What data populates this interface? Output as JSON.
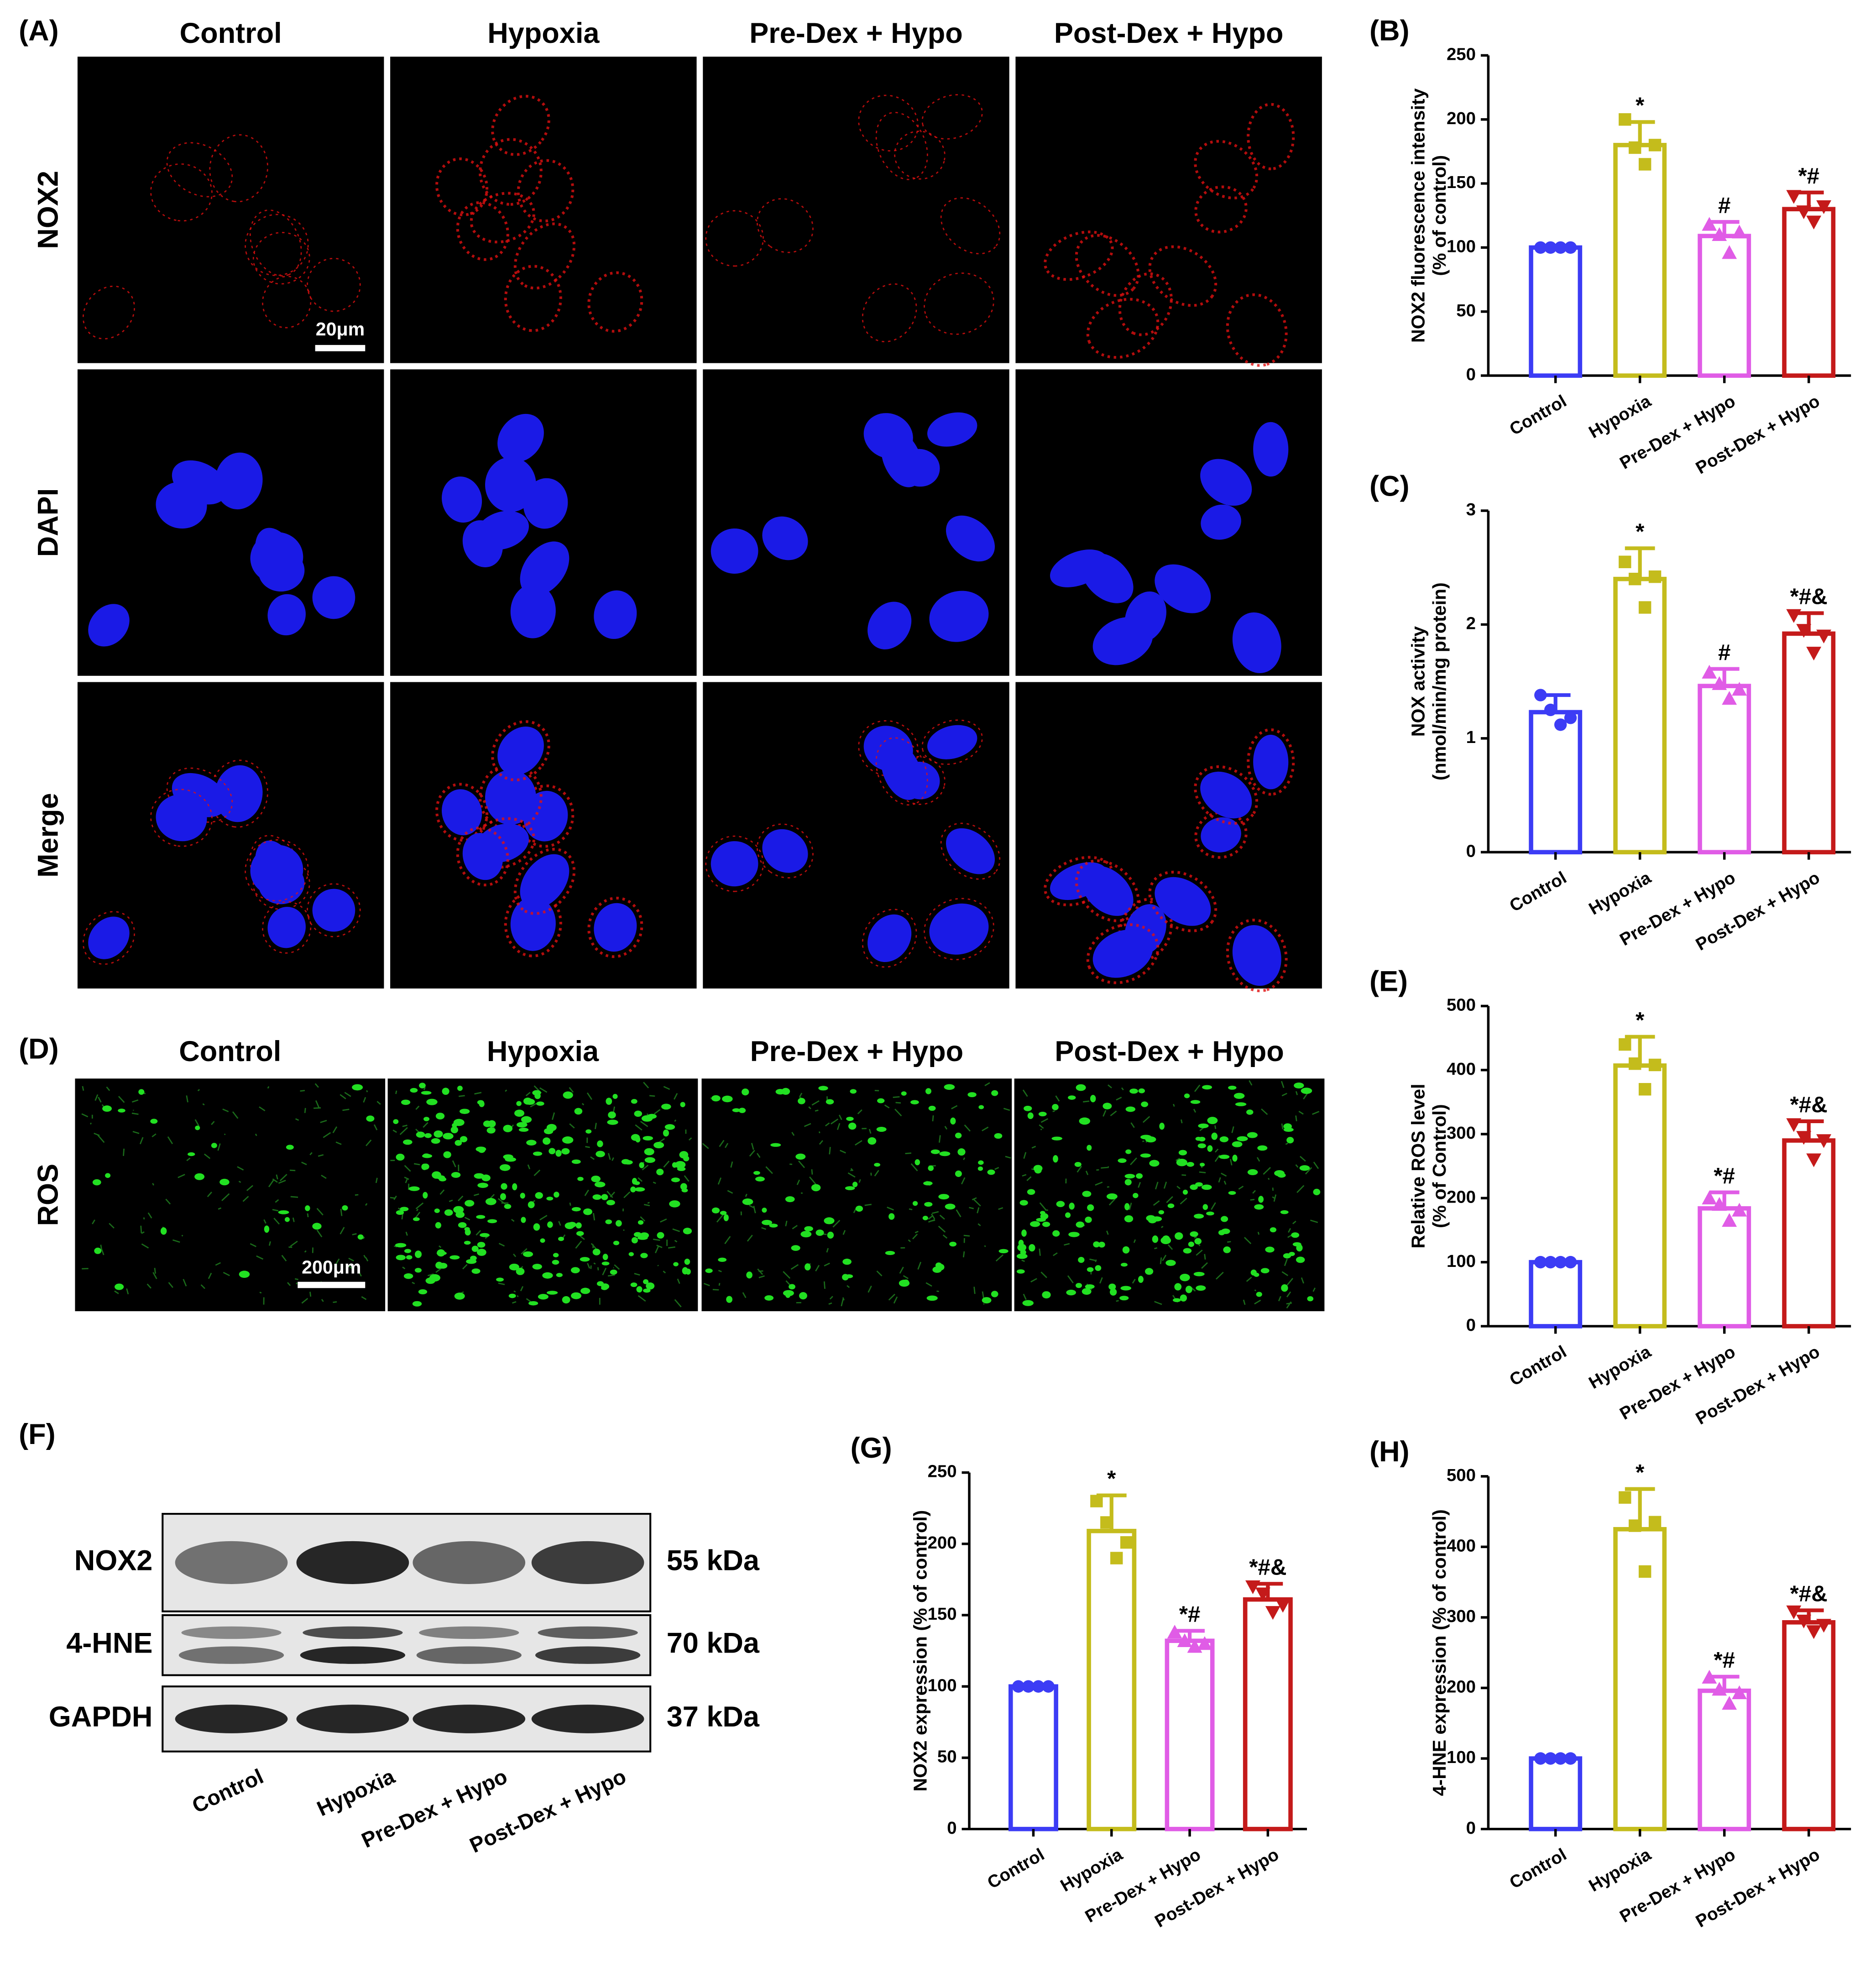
{
  "figure": {
    "panel_a": "(A)",
    "panel_d": "(D)",
    "panel_f": "(F)",
    "a_columns": [
      "Control",
      "Hypoxia",
      "Pre-Dex + Hypo",
      "Post-Dex + Hypo"
    ],
    "a_rows": [
      "NOX2",
      "DAPI",
      "Merge"
    ],
    "a_scale": "20μm",
    "d_columns": [
      "Control",
      "Hypoxia",
      "Pre-Dex + Hypo",
      "Post-Dex + Hypo"
    ],
    "d_row": "ROS",
    "d_scale": "200μm",
    "f_rows": [
      "NOX2",
      "4-HNE",
      "GAPDH"
    ],
    "f_sizes": [
      "55 kDa",
      "70 kDa",
      "37 kDa"
    ],
    "f_lanes": [
      "Control",
      "Hypoxia",
      "Pre-Dex + Hypo",
      "Post-Dex + Hypo"
    ]
  },
  "chart_data": [
    {
      "type": "bar",
      "panel": "(B)",
      "y_label": [
        "NOX2 fluorescence intensity",
        "(% of control)"
      ],
      "categories": [
        "Control",
        "Hypoxia",
        "Pre-Dex + Hypo",
        "Post-Dex + Hypo"
      ],
      "values": [
        100,
        180,
        109,
        130
      ],
      "errors": [
        0,
        18,
        11,
        13
      ],
      "points": [
        [
          100,
          100,
          100,
          100
        ],
        [
          200,
          178,
          165,
          180
        ],
        [
          118,
          110,
          96,
          112
        ],
        [
          140,
          128,
          120,
          132
        ]
      ],
      "annotations": [
        null,
        "*",
        "#",
        "*#"
      ],
      "colors": [
        "#3c3cf5",
        "#c4bc1c",
        "#e05ce6",
        "#c41a1a"
      ],
      "ylim": [
        0,
        250
      ],
      "yticks": [
        0,
        50,
        100,
        150,
        200,
        250
      ]
    },
    {
      "type": "bar",
      "panel": "(C)",
      "y_label": [
        "NOX activity",
        "(nmol/min/mg protein)"
      ],
      "categories": [
        "Control",
        "Hypoxia",
        "Pre-Dex + Hypo",
        "Post-Dex + Hypo"
      ],
      "values": [
        1.23,
        2.4,
        1.46,
        1.92
      ],
      "errors": [
        0.15,
        0.27,
        0.15,
        0.18
      ],
      "points": [
        [
          1.38,
          1.25,
          1.12,
          1.18
        ],
        [
          2.55,
          2.4,
          2.15,
          2.42
        ],
        [
          1.58,
          1.48,
          1.35,
          1.43
        ],
        [
          2.08,
          1.95,
          1.75,
          1.9
        ]
      ],
      "annotations": [
        null,
        "*",
        "#",
        "*#&"
      ],
      "colors": [
        "#3c3cf5",
        "#c4bc1c",
        "#e05ce6",
        "#c41a1a"
      ],
      "ylim": [
        0,
        3
      ],
      "yticks": [
        0,
        1,
        2,
        3
      ]
    },
    {
      "type": "bar",
      "panel": "(E)",
      "y_label": [
        "Relative ROS level",
        "(% of Control)"
      ],
      "categories": [
        "Control",
        "Hypoxia",
        "Pre-Dex + Hypo",
        "Post-Dex + Hypo"
      ],
      "values": [
        100,
        407,
        184,
        290
      ],
      "errors": [
        0,
        45,
        25,
        30
      ],
      "points": [
        [
          100,
          100,
          100,
          100
        ],
        [
          440,
          410,
          370,
          408
        ],
        [
          200,
          190,
          165,
          181
        ],
        [
          315,
          295,
          260,
          290
        ]
      ],
      "annotations": [
        null,
        "*",
        "*#",
        "*#&"
      ],
      "colors": [
        "#3c3cf5",
        "#c4bc1c",
        "#e05ce6",
        "#c41a1a"
      ],
      "ylim": [
        0,
        500
      ],
      "yticks": [
        0,
        100,
        200,
        300,
        400,
        500
      ]
    },
    {
      "type": "bar",
      "panel": "(G)",
      "y_label": [
        "NOX2 expression (% of control)"
      ],
      "categories": [
        "Control",
        "Hypoxia",
        "Pre-Dex + Hypo",
        "Post-Dex + Hypo"
      ],
      "values": [
        100,
        209,
        132,
        161
      ],
      "errors": [
        0,
        25,
        7,
        11
      ],
      "points": [
        [
          100,
          100,
          100,
          100
        ],
        [
          230,
          215,
          190,
          201
        ],
        [
          138,
          132,
          128,
          130
        ],
        [
          170,
          165,
          152,
          157
        ]
      ],
      "annotations": [
        null,
        "*",
        "*#",
        "*#&"
      ],
      "colors": [
        "#3c3cf5",
        "#c4bc1c",
        "#e05ce6",
        "#c41a1a"
      ],
      "ylim": [
        0,
        250
      ],
      "yticks": [
        0,
        50,
        100,
        150,
        200,
        250
      ]
    },
    {
      "type": "bar",
      "panel": "(H)",
      "y_label": [
        "4-HNE expression (% of control)"
      ],
      "categories": [
        "Control",
        "Hypoxia",
        "Pre-Dex + Hypo",
        "Post-Dex + Hypo"
      ],
      "values": [
        100,
        425,
        196,
        293
      ],
      "errors": [
        0,
        57,
        20,
        17
      ],
      "points": [
        [
          100,
          100,
          100,
          100
        ],
        [
          470,
          430,
          365,
          435
        ],
        [
          215,
          198,
          178,
          193
        ],
        [
          308,
          295,
          280,
          289
        ]
      ],
      "annotations": [
        null,
        "*",
        "*#",
        "*#&"
      ],
      "colors": [
        "#3c3cf5",
        "#c4bc1c",
        "#e05ce6",
        "#c41a1a"
      ],
      "ylim": [
        0,
        500
      ],
      "yticks": [
        0,
        100,
        200,
        300,
        400,
        500
      ]
    }
  ]
}
